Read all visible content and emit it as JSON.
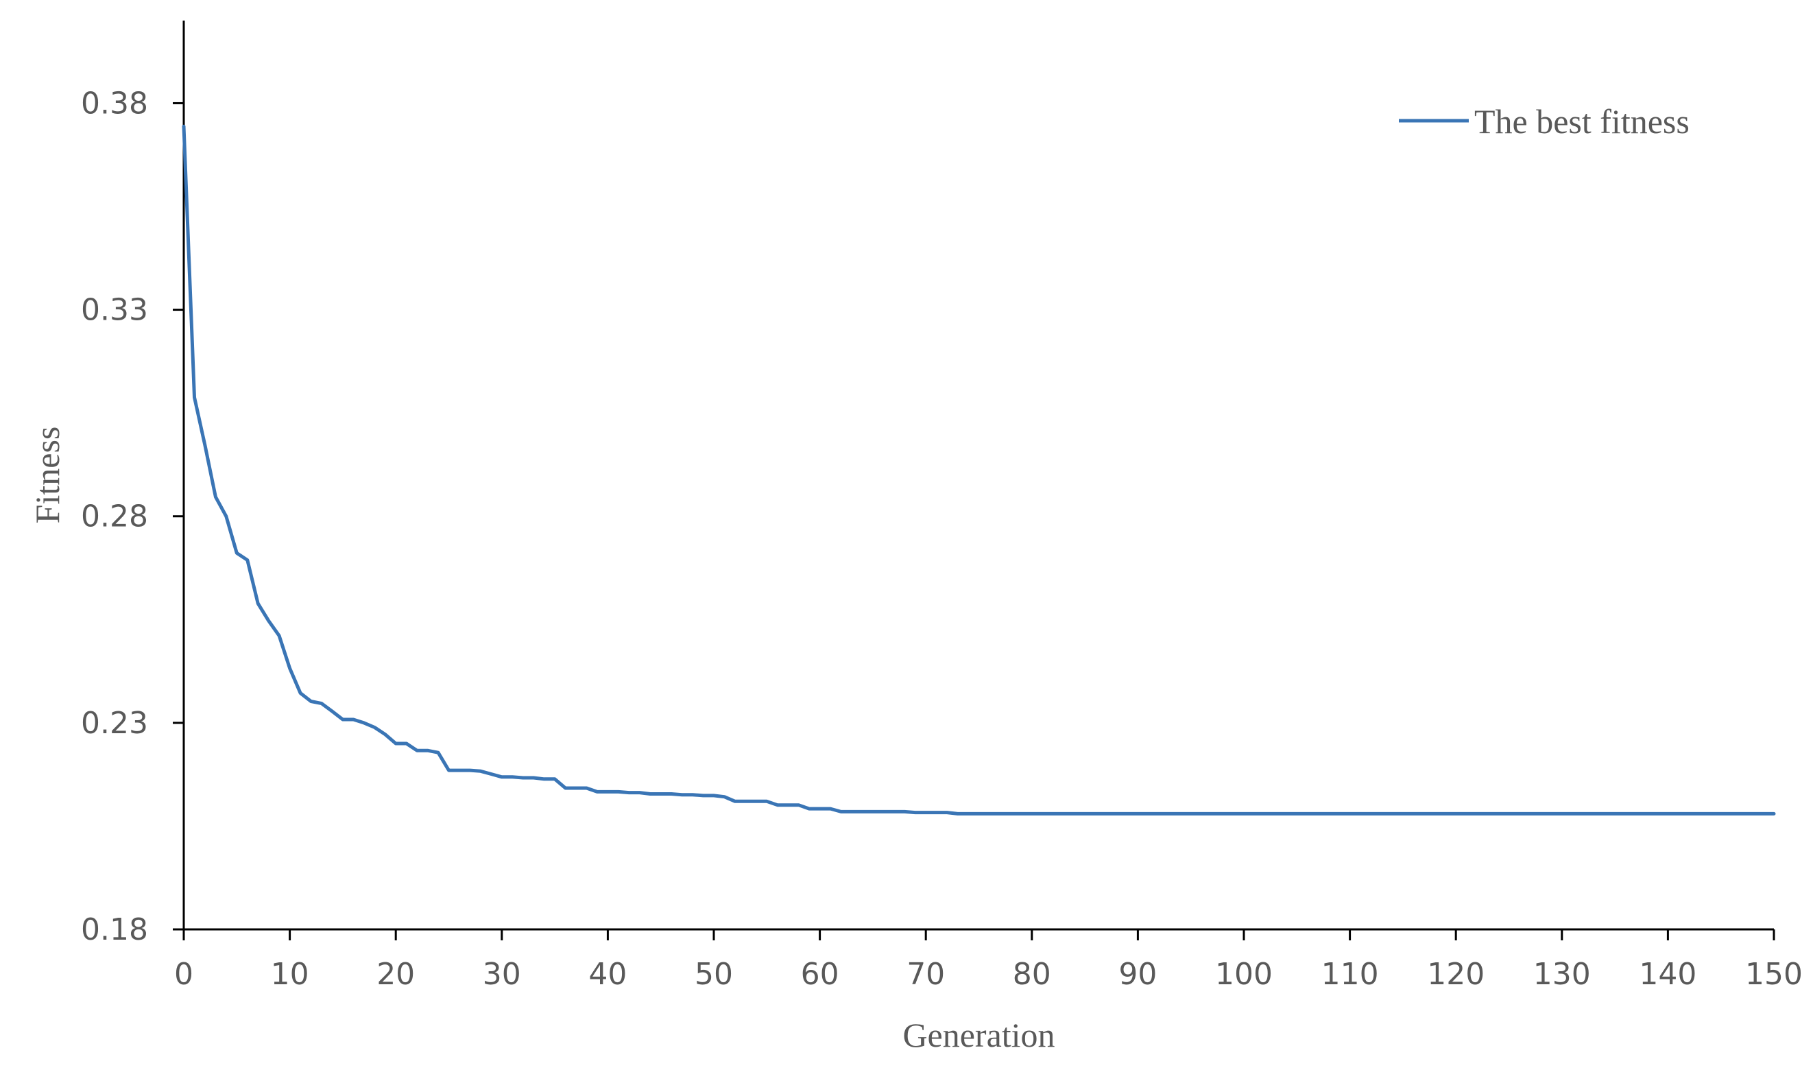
{
  "chart_data": {
    "type": "line",
    "title": "",
    "xlabel": "Generation",
    "ylabel": "Fitness",
    "xlim": [
      0,
      150
    ],
    "ylim": [
      0.18,
      0.4
    ],
    "x_ticks": [
      0,
      10,
      20,
      30,
      40,
      50,
      60,
      70,
      80,
      90,
      100,
      110,
      120,
      130,
      140,
      150
    ],
    "x_tick_labels": [
      "0",
      "10",
      "20",
      "30",
      "40",
      "50",
      "60",
      "70",
      "80",
      "90",
      "100",
      "110",
      "120",
      "130",
      "140",
      "150"
    ],
    "y_ticks": [
      0.18,
      0.23,
      0.28,
      0.33,
      0.38
    ],
    "y_tick_labels": [
      "0.18",
      "0.23",
      "0.28",
      "0.33",
      "0.38"
    ],
    "grid": false,
    "legend": {
      "position": "top-right"
    },
    "series": [
      {
        "name": "The best fitness",
        "color": "#3a75b5",
        "x": [
          0,
          1,
          2,
          3,
          4,
          5,
          6,
          7,
          8,
          9,
          10,
          11,
          12,
          13,
          14,
          15,
          16,
          17,
          18,
          19,
          20,
          21,
          22,
          23,
          24,
          25,
          26,
          27,
          28,
          29,
          30,
          31,
          32,
          33,
          34,
          35,
          36,
          37,
          38,
          39,
          40,
          41,
          42,
          43,
          44,
          45,
          46,
          47,
          48,
          49,
          50,
          51,
          52,
          53,
          54,
          55,
          56,
          57,
          58,
          59,
          60,
          61,
          62,
          63,
          64,
          65,
          66,
          67,
          68,
          69,
          70,
          71,
          72,
          73,
          150
        ],
        "values": [
          0.3744,
          0.3088,
          0.2972,
          0.2847,
          0.28,
          0.2711,
          0.2694,
          0.2589,
          0.2547,
          0.2511,
          0.2432,
          0.2372,
          0.2352,
          0.2347,
          0.2328,
          0.2308,
          0.2308,
          0.23,
          0.2289,
          0.2272,
          0.225,
          0.225,
          0.2233,
          0.2233,
          0.2228,
          0.2185,
          0.2185,
          0.2185,
          0.2183,
          0.2176,
          0.2169,
          0.2169,
          0.2167,
          0.2167,
          0.2164,
          0.2164,
          0.2142,
          0.2142,
          0.2142,
          0.2133,
          0.2133,
          0.2133,
          0.2131,
          0.2131,
          0.2128,
          0.2128,
          0.2128,
          0.2126,
          0.2126,
          0.2124,
          0.2124,
          0.2121,
          0.211,
          0.211,
          0.211,
          0.211,
          0.2101,
          0.2101,
          0.2101,
          0.2092,
          0.2092,
          0.2092,
          0.2085,
          0.2085,
          0.2085,
          0.2085,
          0.2085,
          0.2085,
          0.2085,
          0.2083,
          0.2083,
          0.2083,
          0.2083,
          0.208,
          0.208
        ]
      }
    ]
  }
}
